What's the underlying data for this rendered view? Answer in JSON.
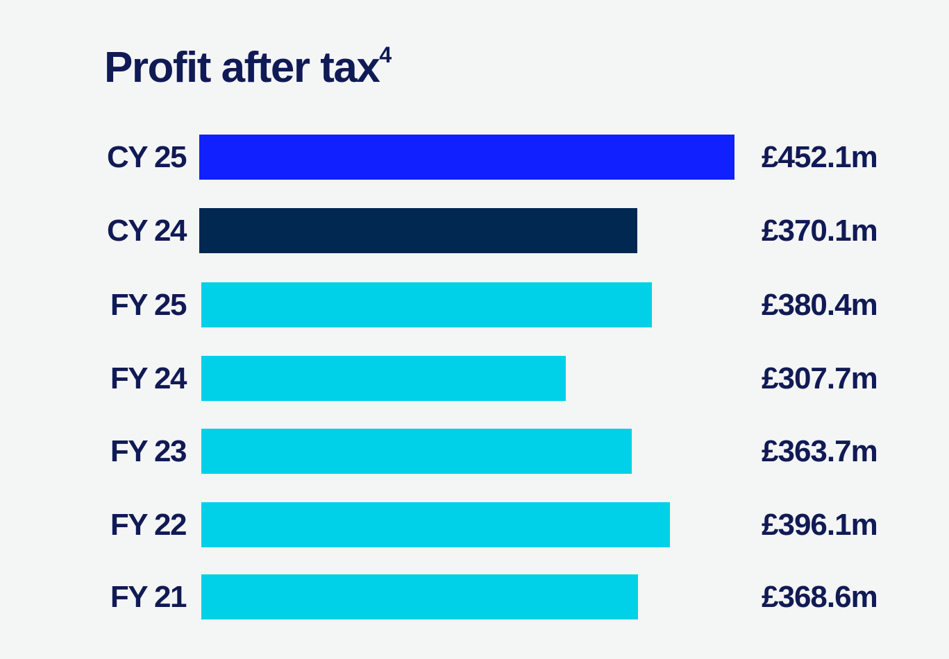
{
  "chart_data": {
    "type": "bar",
    "orientation": "horizontal",
    "title": "Profit after tax",
    "title_superscript": "4",
    "xlabel": "",
    "ylabel": "",
    "grid": false,
    "xlim": [
      0,
      452.1
    ],
    "categories": [
      "CY 25",
      "CY 24",
      "FY 25",
      "FY 24",
      "FY 23",
      "FY 22",
      "FY 21"
    ],
    "values": [
      452.1,
      370.1,
      380.4,
      307.7,
      363.7,
      396.1,
      368.6
    ],
    "data_labels": [
      "£452.1m",
      "£370.1m",
      "£380.4m",
      "£307.7m",
      "£363.7m",
      "£396.1m",
      "£368.6m"
    ],
    "bar_colors": [
      "#1020ff",
      "#002851",
      "#00d0e8",
      "#00d0e8",
      "#00d0e8",
      "#00d0e8",
      "#00d0e8"
    ]
  },
  "colors": {
    "background": "#f4f5f5",
    "text": "#101a55"
  }
}
